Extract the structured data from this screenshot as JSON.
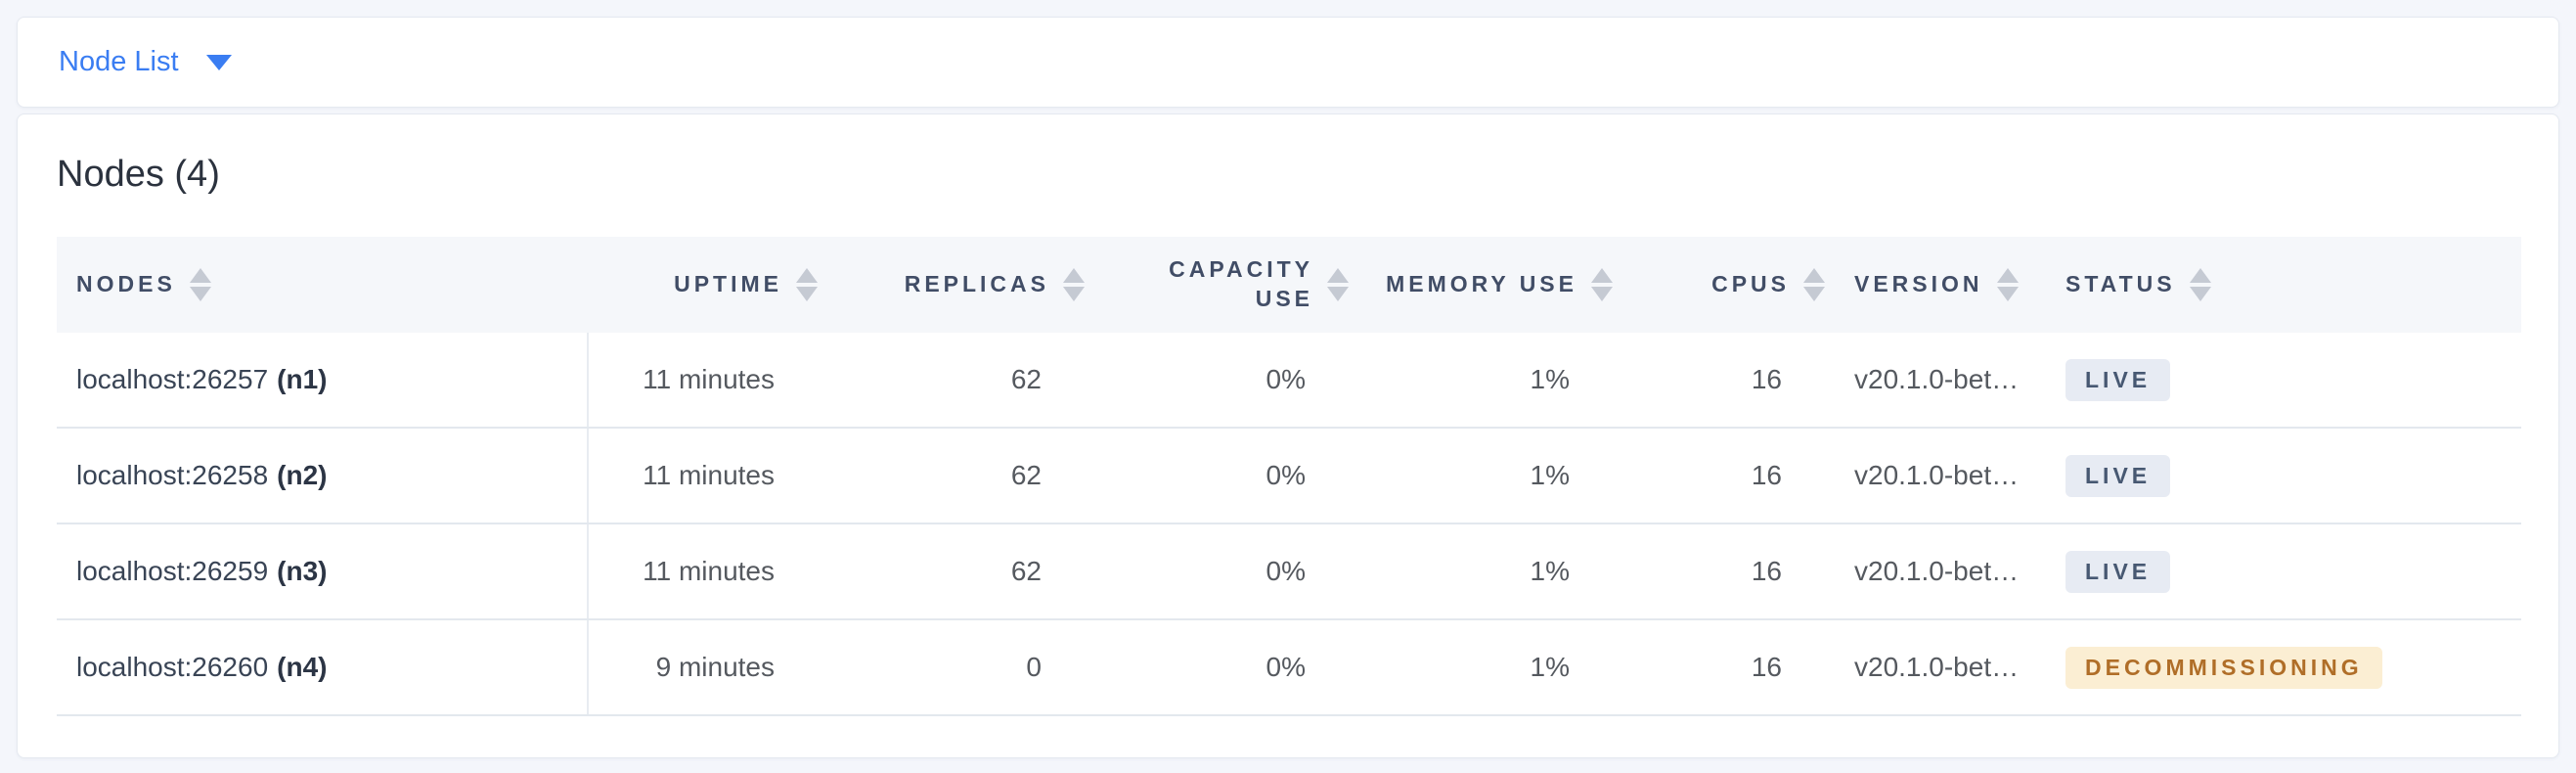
{
  "colors": {
    "accent_blue": "#3a7df2",
    "live_badge_bg": "#e7ebf3",
    "live_badge_text": "#475872",
    "decommissioning_badge_bg": "#fbeed3",
    "decommissioning_badge_text": "#b06e28"
  },
  "view_selector": {
    "label": "Node List"
  },
  "panel": {
    "title": "Nodes (4)",
    "table": {
      "columns": [
        {
          "label": "NODES"
        },
        {
          "label": "UPTIME"
        },
        {
          "label": "REPLICAS"
        },
        {
          "label": "CAPACITY USE"
        },
        {
          "label": "MEMORY USE"
        },
        {
          "label": "CPUS"
        },
        {
          "label": "VERSION"
        },
        {
          "label": "STATUS"
        }
      ],
      "rows": [
        {
          "address": "localhost:26257",
          "node_id": "(n1)",
          "uptime": "11 minutes",
          "replicas": "62",
          "capacity_use": "0%",
          "memory_use": "1%",
          "cpus": "16",
          "version": "v20.1.0-bet…",
          "status": "LIVE"
        },
        {
          "address": "localhost:26258",
          "node_id": "(n2)",
          "uptime": "11 minutes",
          "replicas": "62",
          "capacity_use": "0%",
          "memory_use": "1%",
          "cpus": "16",
          "version": "v20.1.0-bet…",
          "status": "LIVE"
        },
        {
          "address": "localhost:26259",
          "node_id": "(n3)",
          "uptime": "11 minutes",
          "replicas": "62",
          "capacity_use": "0%",
          "memory_use": "1%",
          "cpus": "16",
          "version": "v20.1.0-bet…",
          "status": "LIVE"
        },
        {
          "address": "localhost:26260",
          "node_id": "(n4)",
          "uptime": "9 minutes",
          "replicas": "0",
          "capacity_use": "0%",
          "memory_use": "1%",
          "cpus": "16",
          "version": "v20.1.0-bet…",
          "status": "DECOMMISSIONING"
        }
      ]
    }
  }
}
